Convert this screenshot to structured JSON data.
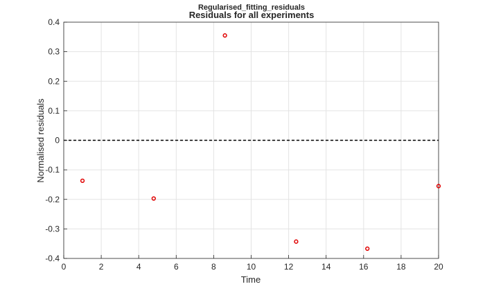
{
  "figure": {
    "title": "Regularised_fitting_residuals",
    "subtitle": "Residuals for all experiments"
  },
  "chart_data": {
    "type": "scatter",
    "title": "Residuals for all experiments",
    "xlabel": "Time",
    "ylabel": "Normalised residuals",
    "xlim": [
      0,
      20
    ],
    "ylim": [
      -0.4,
      0.4
    ],
    "xticks": [
      "0",
      "2",
      "4",
      "6",
      "8",
      "10",
      "12",
      "14",
      "16",
      "18",
      "20"
    ],
    "yticks": [
      "0.4",
      "0.3",
      "0.2",
      "0.1",
      "0",
      "-0.1",
      "-0.2",
      "-0.3",
      "-0.4"
    ],
    "grid": true,
    "reference_line": {
      "y": 0,
      "style": "dashed",
      "color": "#000000"
    },
    "marker_color": "#e00000",
    "points": [
      {
        "x": 1.0,
        "y": -0.137
      },
      {
        "x": 4.8,
        "y": -0.197
      },
      {
        "x": 8.6,
        "y": 0.355
      },
      {
        "x": 12.4,
        "y": -0.343
      },
      {
        "x": 16.2,
        "y": -0.367
      },
      {
        "x": 20.0,
        "y": -0.155
      }
    ]
  }
}
